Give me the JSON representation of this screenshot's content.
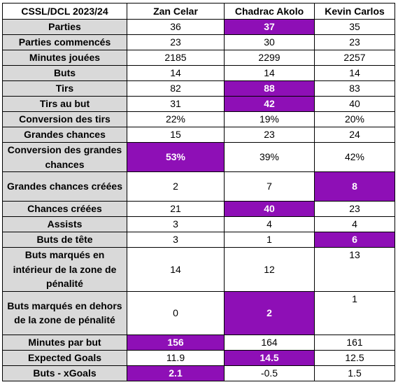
{
  "table": {
    "headers": [
      "CSSL/DCL 2023/24",
      "Zan Celar",
      "Chadrac Akolo",
      "Kevin Carlos"
    ],
    "highlight_color": "#8e0fb6",
    "label_bg": "#d9d9d9",
    "rows": [
      {
        "label": "Parties",
        "values": [
          "36",
          "37",
          "35"
        ],
        "highlight": [
          false,
          true,
          false
        ]
      },
      {
        "label": "Parties commencés",
        "values": [
          "23",
          "30",
          "23"
        ],
        "highlight": [
          false,
          false,
          false
        ]
      },
      {
        "label": "Minutes jouées",
        "values": [
          "2185",
          "2299",
          "2257"
        ],
        "highlight": [
          false,
          false,
          false
        ]
      },
      {
        "label": "Buts",
        "values": [
          "14",
          "14",
          "14"
        ],
        "highlight": [
          false,
          false,
          false
        ]
      },
      {
        "label": "Tirs",
        "values": [
          "82",
          "88",
          "83"
        ],
        "highlight": [
          false,
          true,
          false
        ]
      },
      {
        "label": "Tirs au but",
        "values": [
          "31",
          "42",
          "40"
        ],
        "highlight": [
          false,
          true,
          false
        ]
      },
      {
        "label": "Conversion des tirs",
        "values": [
          "22%",
          "19%",
          "20%"
        ],
        "highlight": [
          false,
          false,
          false
        ]
      },
      {
        "label": "Grandes chances",
        "values": [
          "15",
          "23",
          "24"
        ],
        "highlight": [
          false,
          false,
          false
        ]
      },
      {
        "label": "Conversion des grandes chances",
        "values": [
          "53%",
          "39%",
          "42%"
        ],
        "highlight": [
          true,
          false,
          false
        ]
      },
      {
        "label": "Grandes chances créées",
        "values": [
          "2",
          "7",
          "8"
        ],
        "highlight": [
          false,
          false,
          true
        ]
      },
      {
        "label": "Chances créées",
        "values": [
          "21",
          "40",
          "23"
        ],
        "highlight": [
          false,
          true,
          false
        ]
      },
      {
        "label": "Assists",
        "values": [
          "3",
          "4",
          "4"
        ],
        "highlight": [
          false,
          false,
          false
        ]
      },
      {
        "label": "Buts de tête",
        "values": [
          "3",
          "1",
          "6"
        ],
        "highlight": [
          false,
          false,
          true
        ]
      },
      {
        "label": "Buts marqués en intérieur de la zone de pénalité",
        "values": [
          "14",
          "12",
          "13"
        ],
        "highlight": [
          false,
          false,
          false
        ]
      },
      {
        "label": "Buts marqués en dehors de la zone de pénalité",
        "values": [
          "0",
          "2",
          "1"
        ],
        "highlight": [
          false,
          true,
          false
        ]
      },
      {
        "label": "Minutes par but",
        "values": [
          "156",
          "164",
          "161"
        ],
        "highlight": [
          true,
          false,
          false
        ]
      },
      {
        "label": "Expected Goals",
        "values": [
          "11.9",
          "14.5",
          "12.5"
        ],
        "highlight": [
          false,
          true,
          false
        ]
      },
      {
        "label": "Buts - xGoals",
        "values": [
          "2.1",
          "-0.5",
          "1.5"
        ],
        "highlight": [
          true,
          false,
          false
        ]
      }
    ]
  }
}
